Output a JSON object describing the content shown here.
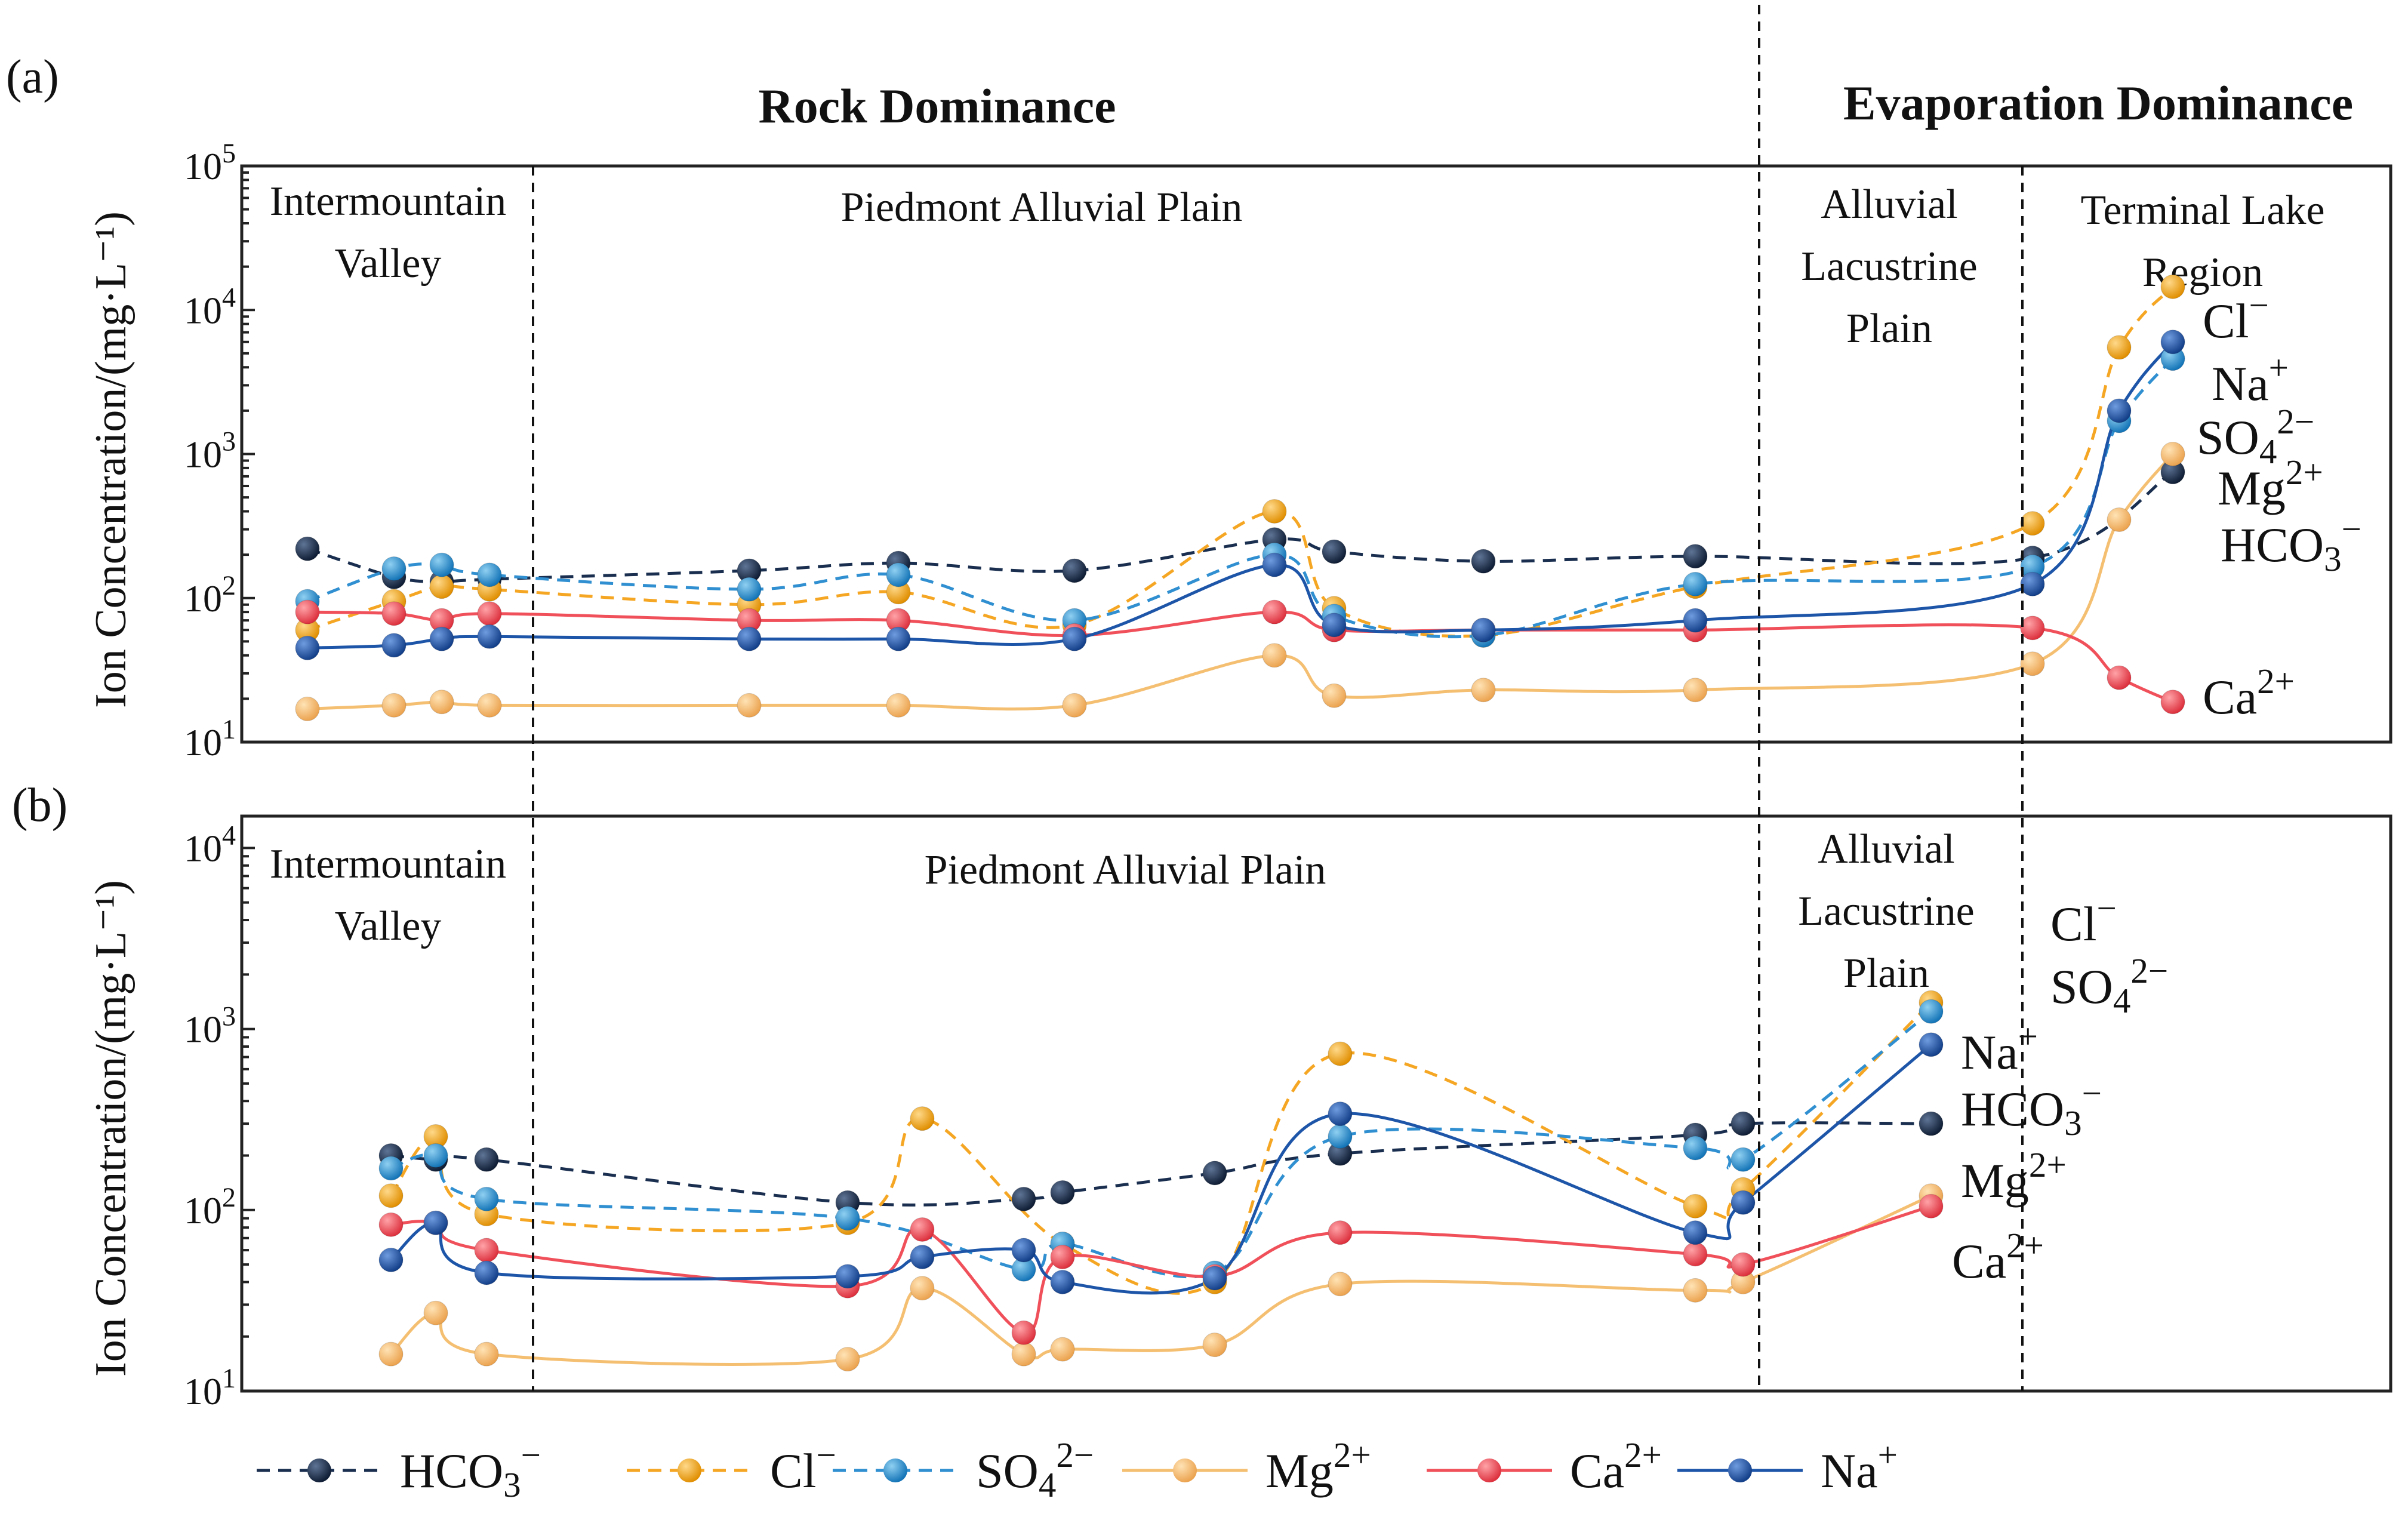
{
  "figure": {
    "panel_a_letter": "(a)",
    "panel_b_letter": "(b)",
    "dominance_labels": [
      "Rock Dominance",
      "Evaporation Dominance"
    ]
  },
  "legend": {
    "items": [
      {
        "key": "HCO3",
        "base": "HCO",
        "sub": "3",
        "sup": "−",
        "color": "#1a2f4f",
        "dashed": true
      },
      {
        "key": "Cl",
        "base": "Cl",
        "sub": "",
        "sup": "−",
        "color": "#f5a623",
        "dashed": true
      },
      {
        "key": "SO4",
        "base": "SO",
        "sub": "4",
        "sup": "2−",
        "color": "#2f8fd0",
        "dashed": true
      },
      {
        "key": "Mg",
        "base": "Mg",
        "sub": "",
        "sup": "2+",
        "color": "#f5bf72",
        "dashed": false
      },
      {
        "key": "Ca",
        "base": "Ca",
        "sub": "",
        "sup": "2+",
        "color": "#f0505a",
        "dashed": false
      },
      {
        "key": "Na",
        "base": "Na",
        "sub": "",
        "sup": "+",
        "color": "#1d55a8",
        "dashed": false
      }
    ]
  },
  "chart_data": [
    {
      "type": "line",
      "panel": "(a)",
      "ylabel": "Ion Concentration/(mg·L⁻¹)",
      "yscale": "log",
      "ylim": [
        10,
        100000
      ],
      "ytick_labels": [
        {
          "base": "10",
          "exp": "1"
        },
        {
          "base": "10",
          "exp": "2"
        },
        {
          "base": "10",
          "exp": "3"
        },
        {
          "base": "10",
          "exp": "4"
        },
        {
          "base": "10",
          "exp": "5"
        }
      ],
      "region_labels": [
        "Intermountain\nValley",
        "Piedmont Alluvial Plain",
        "Alluvial\nLacustrine\nPlain",
        "Terminal Lake\nRegion"
      ],
      "x": [
        1,
        2,
        3,
        4,
        8,
        10,
        12,
        14,
        15,
        17,
        19,
        21,
        22,
        23
      ],
      "series": [
        {
          "name": "HCO3",
          "values": [
            220,
            140,
            130,
            135,
            155,
            175,
            155,
            255,
            210,
            180,
            195,
            190,
            null,
            750
          ]
        },
        {
          "name": "Cl",
          "values": [
            60,
            95,
            120,
            115,
            90,
            110,
            65,
            400,
            85,
            55,
            120,
            330,
            5500,
            14500
          ]
        },
        {
          "name": "SO4",
          "values": [
            95,
            160,
            170,
            145,
            115,
            145,
            70,
            200,
            75,
            55,
            125,
            165,
            1700,
            4600
          ]
        },
        {
          "name": "Mg",
          "values": [
            17,
            18,
            19,
            18,
            18,
            18,
            18,
            40,
            21,
            23,
            23,
            35,
            350,
            1000
          ]
        },
        {
          "name": "Ca",
          "values": [
            80,
            78,
            70,
            78,
            70,
            70,
            55,
            80,
            60,
            60,
            60,
            62,
            28,
            19
          ]
        },
        {
          "name": "Na",
          "values": [
            45,
            47,
            52,
            54,
            52,
            52,
            52,
            170,
            65,
            60,
            70,
            125,
            2000,
            6000
          ]
        }
      ],
      "end_labels": [
        {
          "key": "Cl",
          "base": "Cl",
          "sub": "",
          "sup": "−"
        },
        {
          "key": "Na",
          "base": "Na",
          "sub": "",
          "sup": "+"
        },
        {
          "key": "SO4",
          "base": "SO",
          "sub": "4",
          "sup": "2−"
        },
        {
          "key": "Mg",
          "base": "Mg",
          "sub": "",
          "sup": "2+"
        },
        {
          "key": "HCO3",
          "base": "HCO",
          "sub": "3",
          "sup": "−"
        },
        {
          "key": "Ca",
          "base": "Ca",
          "sub": "",
          "sup": "2+"
        }
      ]
    },
    {
      "type": "line",
      "panel": "(b)",
      "ylabel": "Ion Concentration/(mg·L⁻¹)",
      "yscale": "log",
      "ylim": [
        10,
        15000
      ],
      "ytick_labels": [
        {
          "base": "10",
          "exp": "1"
        },
        {
          "base": "10",
          "exp": "2"
        },
        {
          "base": "10",
          "exp": "3"
        },
        {
          "base": "10",
          "exp": "4"
        }
      ],
      "region_labels": [
        "Intermountain\nValley",
        "Piedmont Alluvial Plain",
        "Alluvial\nLacustrine\nPlain"
      ],
      "x": [
        1,
        2,
        3,
        8,
        9,
        10,
        10.5,
        12,
        14,
        18,
        18.7,
        20.7
      ],
      "series": [
        {
          "name": "HCO3",
          "values": [
            200,
            190,
            190,
            110,
            null,
            115,
            125,
            160,
            205,
            260,
            300,
            300
          ]
        },
        {
          "name": "Cl",
          "values": [
            120,
            255,
            95,
            85,
            320,
            null,
            65,
            40,
            730,
            105,
            130,
            1400
          ]
        },
        {
          "name": "SO4",
          "values": [
            170,
            200,
            115,
            90,
            null,
            47,
            65,
            45,
            255,
            220,
            190,
            1250
          ]
        },
        {
          "name": "Mg",
          "values": [
            16,
            27,
            16,
            15,
            37,
            16,
            17,
            18,
            39,
            36,
            40,
            120
          ]
        },
        {
          "name": "Ca",
          "values": [
            83,
            85,
            60,
            38,
            78,
            21,
            55,
            43,
            75,
            57,
            50,
            105
          ]
        },
        {
          "name": "Na",
          "values": [
            53,
            85,
            45,
            43,
            55,
            60,
            40,
            42,
            340,
            75,
            110,
            820
          ]
        }
      ],
      "end_labels": [
        {
          "key": "Cl",
          "base": "Cl",
          "sub": "",
          "sup": "−"
        },
        {
          "key": "SO4",
          "base": "SO",
          "sub": "4",
          "sup": "2−"
        },
        {
          "key": "Na",
          "base": "Na",
          "sub": "",
          "sup": "+"
        },
        {
          "key": "HCO3",
          "base": "HCO",
          "sub": "3",
          "sup": "−"
        },
        {
          "key": "Mg",
          "base": "Mg",
          "sub": "",
          "sup": "2+"
        },
        {
          "key": "Ca",
          "base": "Ca",
          "sub": "",
          "sup": "2+"
        }
      ]
    }
  ]
}
